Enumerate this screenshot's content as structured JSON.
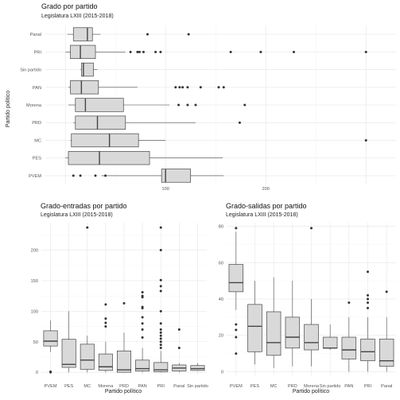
{
  "chart_data": [
    {
      "type": "boxplot",
      "orientation": "horizontal",
      "title": "Grado por partido",
      "subtitle": "Legislatura LXIII (2015-2018)",
      "xlabel": "",
      "ylabel": "Partido político",
      "xlim": [
        -20,
        330
      ],
      "xticks": [
        100,
        200
      ],
      "categories": [
        "Panal",
        "PRI",
        "Sin partido",
        "PAN",
        "Morena",
        "PRD",
        "MC",
        "PES",
        "PVEM"
      ],
      "grid": true,
      "boxes": [
        {
          "category": "Panal",
          "min": 2,
          "q1": 8,
          "median": 22,
          "q3": 27,
          "max": 35,
          "outliers": [
            82,
            123
          ]
        },
        {
          "category": "PRI",
          "min": 0,
          "q1": 5,
          "median": 15,
          "q3": 30,
          "max": 60,
          "outliers": [
            65,
            72,
            74,
            78,
            90,
            95,
            165,
            195,
            228,
            300
          ]
        },
        {
          "category": "Sin partido",
          "min": 15,
          "q1": 16,
          "median": 18,
          "q3": 28,
          "max": 32,
          "outliers": []
        },
        {
          "category": "PAN",
          "min": 3,
          "q1": 5,
          "median": 16,
          "q3": 33,
          "max": 72,
          "outliers": [
            110,
            114,
            117,
            122,
            135,
            153,
            158
          ]
        },
        {
          "category": "Morena",
          "min": 3,
          "q1": 10,
          "median": 20,
          "q3": 58,
          "max": 104,
          "outliers": [
            113,
            122,
            130,
            179
          ]
        },
        {
          "category": "PRD",
          "min": 8,
          "q1": 10,
          "median": 32,
          "q3": 60,
          "max": 130,
          "outliers": [
            174
          ]
        },
        {
          "category": "MC",
          "min": 5,
          "q1": 6,
          "median": 44,
          "q3": 73,
          "max": 100,
          "outliers": [
            300
          ]
        },
        {
          "category": "PES",
          "min": 0,
          "q1": 3,
          "median": 34,
          "q3": 84,
          "max": 157,
          "outliers": []
        },
        {
          "category": "PVEM",
          "min": 36,
          "q1": 96,
          "median": 100,
          "q3": 125,
          "max": 158,
          "outliers": [
            8,
            15,
            30,
            40
          ]
        }
      ]
    },
    {
      "type": "boxplot",
      "orientation": "vertical",
      "title": "Grado-entradas por partido",
      "subtitle": "Legislatura LXIII (2015-2018)",
      "xlabel": "Partido político",
      "ylabel": "",
      "ylim": [
        -5,
        245
      ],
      "yticks": [
        0,
        50,
        100,
        150,
        200
      ],
      "categories": [
        "PVEM",
        "PES",
        "MC",
        "Morena",
        "PRD",
        "PAN",
        "PRI",
        "Panal",
        "Sin partido"
      ],
      "grid": true,
      "boxes": [
        {
          "category": "PVEM",
          "min": 33,
          "q1": 43,
          "median": 51,
          "q3": 68,
          "max": 85,
          "outliers": [
            0,
            1
          ]
        },
        {
          "category": "PES",
          "min": 0,
          "q1": 8,
          "median": 13,
          "q3": 54,
          "max": 100,
          "outliers": []
        },
        {
          "category": "MC",
          "min": 0,
          "q1": 5,
          "median": 20,
          "q3": 46,
          "max": 60,
          "outliers": [
            237
          ]
        },
        {
          "category": "Morena",
          "min": 0,
          "q1": 3,
          "median": 9,
          "q3": 30,
          "max": 50,
          "outliers": [
            75,
            81,
            88,
            111
          ]
        },
        {
          "category": "PRD",
          "min": 0,
          "q1": 0,
          "median": 4,
          "q3": 35,
          "max": 65,
          "outliers": [
            113
          ]
        },
        {
          "category": "PAN",
          "min": 0,
          "q1": 2,
          "median": 6,
          "q3": 20,
          "max": 40,
          "outliers": [
            57,
            70,
            80,
            90,
            105,
            107,
            123,
            125,
            131
          ]
        },
        {
          "category": "PRI",
          "min": 0,
          "q1": 1,
          "median": 4,
          "q3": 16,
          "max": 35,
          "outliers": [
            40,
            45,
            50,
            55,
            60,
            65,
            70,
            80,
            100,
            133,
            141,
            151,
            200,
            237
          ]
        },
        {
          "category": "Panal",
          "min": 0,
          "q1": 2,
          "median": 7,
          "q3": 12,
          "max": 15,
          "outliers": [
            40,
            70
          ]
        },
        {
          "category": "Sin partido",
          "min": 2,
          "q1": 3,
          "median": 6,
          "q3": 11,
          "max": 15,
          "outliers": []
        }
      ]
    },
    {
      "type": "boxplot",
      "orientation": "vertical",
      "title": "Grado-salidas por partido",
      "subtitle": "Legislatura LXIII (2015-2018)",
      "xlabel": "Partido político",
      "ylabel": "",
      "ylim": [
        -2,
        82
      ],
      "yticks": [
        0,
        20,
        40,
        60,
        80
      ],
      "categories": [
        "PVEM",
        "PES",
        "MC",
        "PRD",
        "Morena",
        "Sin partido",
        "PAN",
        "PRI",
        "Panal"
      ],
      "grid": true,
      "boxes": [
        {
          "category": "PVEM",
          "min": 34,
          "q1": 44,
          "median": 49,
          "q3": 59,
          "max": 77,
          "outliers": [
            10,
            19,
            23,
            26,
            79
          ]
        },
        {
          "category": "PES",
          "min": 4,
          "q1": 11,
          "median": 25,
          "q3": 37,
          "max": 50,
          "outliers": []
        },
        {
          "category": "MC",
          "min": 2,
          "q1": 9,
          "median": 16,
          "q3": 33,
          "max": 52,
          "outliers": []
        },
        {
          "category": "PRD",
          "min": 3,
          "q1": 13,
          "median": 19,
          "q3": 30,
          "max": 50,
          "outliers": []
        },
        {
          "category": "Morena",
          "min": 3,
          "q1": 12,
          "median": 16,
          "q3": 26,
          "max": 40,
          "outliers": [
            79
          ]
        },
        {
          "category": "Sin partido",
          "min": 12,
          "q1": 13,
          "median": 13,
          "q3": 19,
          "max": 26,
          "outliers": []
        },
        {
          "category": "PAN",
          "min": 0,
          "q1": 7,
          "median": 12,
          "q3": 19,
          "max": 30,
          "outliers": [
            38
          ]
        },
        {
          "category": "PRI",
          "min": 0,
          "q1": 6,
          "median": 11,
          "q3": 18,
          "max": 30,
          "outliers": [
            35,
            38,
            40,
            42,
            55
          ]
        },
        {
          "category": "Panal",
          "min": 0,
          "q1": 3,
          "median": 6,
          "q3": 18,
          "max": 30,
          "outliers": [
            44
          ]
        }
      ]
    }
  ]
}
